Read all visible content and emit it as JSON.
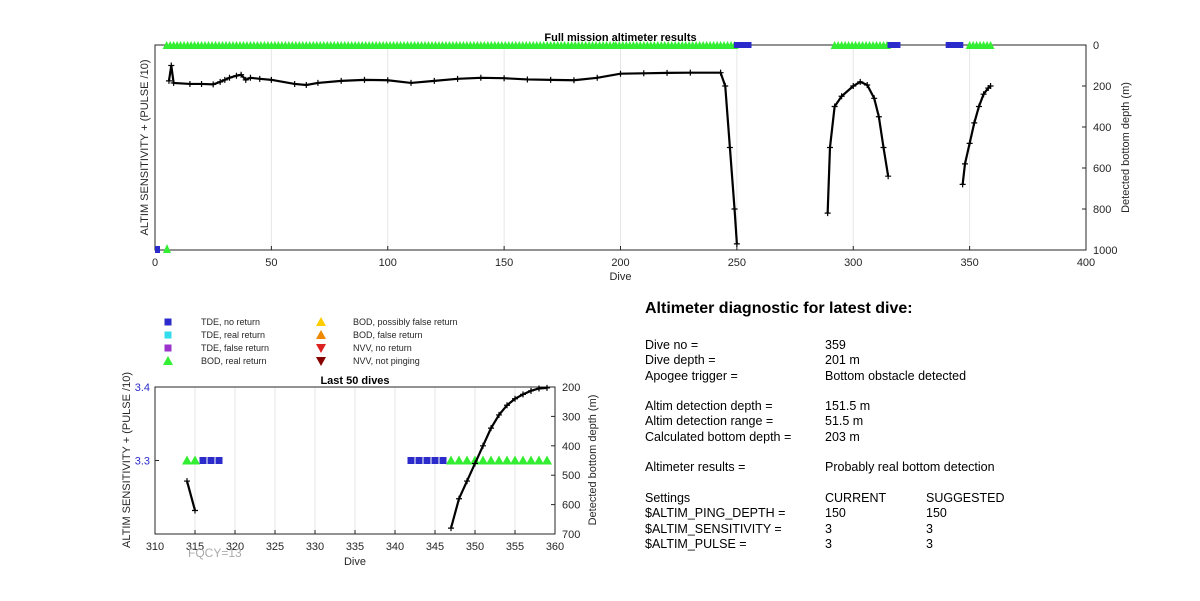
{
  "chart_data": [
    {
      "type": "scatter",
      "title": "Full mission altimeter results",
      "xlabel": "Dive",
      "ylabel_left": "ALTIM SENSITIVITY + (PULSE /10)",
      "ylabel_right": "Detected bottom depth (m)",
      "xlim": [
        0,
        400
      ],
      "ylim_right": [
        1000,
        0
      ],
      "xticks": [
        "0",
        "50",
        "100",
        "150",
        "200",
        "250",
        "300",
        "350",
        "400"
      ],
      "yticks_right": [
        "0",
        "200",
        "400",
        "600",
        "800",
        "1000"
      ],
      "grid": true,
      "series": [
        {
          "name": "Detected bottom depth",
          "color": "#000000",
          "segments": [
            [
              [
                6,
                175
              ],
              [
                7,
                100
              ],
              [
                8,
                185
              ],
              [
                15,
                190
              ],
              [
                20,
                190
              ],
              [
                25,
                192
              ],
              [
                28,
                180
              ],
              [
                30,
                170
              ],
              [
                32,
                160
              ],
              [
                35,
                150
              ],
              [
                37,
                145
              ],
              [
                39,
                170
              ],
              [
                41,
                160
              ],
              [
                45,
                165
              ],
              [
                50,
                170
              ],
              [
                60,
                190
              ],
              [
                65,
                195
              ],
              [
                70,
                185
              ],
              [
                80,
                175
              ],
              [
                90,
                170
              ],
              [
                100,
                172
              ],
              [
                110,
                185
              ],
              [
                120,
                175
              ],
              [
                130,
                165
              ],
              [
                140,
                160
              ],
              [
                150,
                162
              ],
              [
                160,
                168
              ],
              [
                170,
                170
              ],
              [
                180,
                172
              ],
              [
                190,
                160
              ],
              [
                200,
                140
              ],
              [
                210,
                138
              ],
              [
                220,
                136
              ],
              [
                230,
                135
              ],
              [
                243,
                135
              ],
              [
                245,
                200
              ],
              [
                247,
                500
              ],
              [
                249,
                800
              ],
              [
                250,
                970
              ]
            ],
            [
              [
                289,
                820
              ],
              [
                290,
                500
              ],
              [
                292,
                300
              ],
              [
                295,
                250
              ],
              [
                300,
                200
              ],
              [
                303,
                180
              ],
              [
                306,
                195
              ],
              [
                309,
                260
              ],
              [
                311,
                350
              ],
              [
                313,
                500
              ],
              [
                315,
                640
              ]
            ],
            [
              [
                347,
                680
              ],
              [
                348,
                580
              ],
              [
                350,
                480
              ],
              [
                352,
                380
              ],
              [
                354,
                300
              ],
              [
                356,
                240
              ],
              [
                358,
                210
              ],
              [
                359,
                200
              ]
            ]
          ]
        },
        {
          "name": "BOD, real return",
          "color": "#33ee33",
          "top_ranges": [
            [
              5,
              31
            ],
            [
              32,
              197
            ],
            [
              198,
              249
            ],
            [
              292,
              315
            ],
            [
              350,
              360
            ]
          ]
        },
        {
          "name": "TDE, no return",
          "color": "#2b2bcc",
          "top_dives": [
            250,
            251,
            252,
            253,
            254,
            255,
            316,
            317,
            318,
            319,
            341,
            342,
            343,
            344,
            345,
            346
          ]
        }
      ]
    },
    {
      "type": "scatter",
      "title": "Last 50 dives",
      "xlabel": "Dive",
      "ylabel_left": "ALTIM SENSITIVITY + (PULSE /10)",
      "ylabel_right": "Detected bottom depth (m)",
      "xlim": [
        310,
        360
      ],
      "ylim_left": [
        3.2,
        3.4
      ],
      "ylim_right": [
        700,
        200
      ],
      "xticks": [
        "310",
        "315",
        "320",
        "325",
        "330",
        "335",
        "340",
        "345",
        "350",
        "355",
        "360"
      ],
      "yticks_left": [
        "3.4",
        "3.3"
      ],
      "yticks_right": [
        "200",
        "300",
        "400",
        "500",
        "600",
        "700"
      ],
      "grid": true,
      "series": [
        {
          "name": "BOD, real return",
          "color": "#33ee33",
          "x": [
            314,
            315,
            347,
            348,
            349,
            350,
            351,
            352,
            353,
            354,
            355,
            356,
            357,
            358,
            359
          ],
          "y": 3.3
        },
        {
          "name": "TDE, no return",
          "color": "#2b2bcc",
          "x": [
            316,
            317,
            318,
            342,
            343,
            344,
            345,
            346
          ],
          "y": 3.3
        },
        {
          "name": "Detected bottom depth",
          "color": "#000000",
          "segments": [
            [
              [
                314,
                520
              ],
              [
                315,
                620
              ]
            ],
            [
              [
                347,
                680
              ],
              [
                348,
                580
              ],
              [
                349,
                520
              ],
              [
                350,
                460
              ],
              [
                351,
                400
              ],
              [
                352,
                340
              ],
              [
                353,
                295
              ],
              [
                354,
                262
              ],
              [
                355,
                240
              ],
              [
                356,
                225
              ],
              [
                357,
                213
              ],
              [
                358,
                205
              ],
              [
                359,
                203
              ]
            ]
          ]
        }
      ]
    }
  ],
  "legend": {
    "col1": [
      {
        "label": "TDE, no return",
        "color": "#2b2bcc",
        "marker": "square"
      },
      {
        "label": "TDE, real return",
        "color": "#33ddee",
        "marker": "square"
      },
      {
        "label": "TDE, false return",
        "color": "#9933cc",
        "marker": "square"
      },
      {
        "label": "BOD, real return",
        "color": "#33ee33",
        "marker": "triangle-up"
      }
    ],
    "col2": [
      {
        "label": "BOD, possibly false return",
        "color": "#ffcc00",
        "marker": "triangle-up"
      },
      {
        "label": "BOD, false return",
        "color": "#ee8800",
        "marker": "triangle-up"
      },
      {
        "label": "NVV, no return",
        "color": "#dd2222",
        "marker": "triangle-down"
      },
      {
        "label": "NVV, not pinging",
        "color": "#880000",
        "marker": "triangle-down"
      }
    ]
  },
  "watermark": "FQCY=13",
  "diagnostic": {
    "title": "Altimeter diagnostic for latest dive:",
    "rows1": [
      {
        "label": "Dive no =",
        "value": "359"
      },
      {
        "label": "Dive depth =",
        "value": "201 m"
      },
      {
        "label": "Apogee trigger =",
        "value": "Bottom obstacle detected"
      }
    ],
    "rows2": [
      {
        "label": "Altim detection depth =",
        "value": "151.5 m"
      },
      {
        "label": "Altim detection range =",
        "value": "51.5 m"
      },
      {
        "label": "Calculated bottom depth =",
        "value": "203 m"
      }
    ],
    "rows3": [
      {
        "label": "Altimeter results =",
        "value": "Probably real bottom detection"
      }
    ],
    "settings": {
      "header": {
        "label": "Settings",
        "current": "CURRENT",
        "suggested": "SUGGESTED"
      },
      "rows": [
        {
          "label": "$ALTIM_PING_DEPTH =",
          "current": "150",
          "suggested": "150"
        },
        {
          "label": "$ALTIM_SENSITIVITY =",
          "current": "3",
          "suggested": "3"
        },
        {
          "label": "$ALTIM_PULSE =",
          "current": "3",
          "suggested": "3"
        }
      ]
    }
  }
}
